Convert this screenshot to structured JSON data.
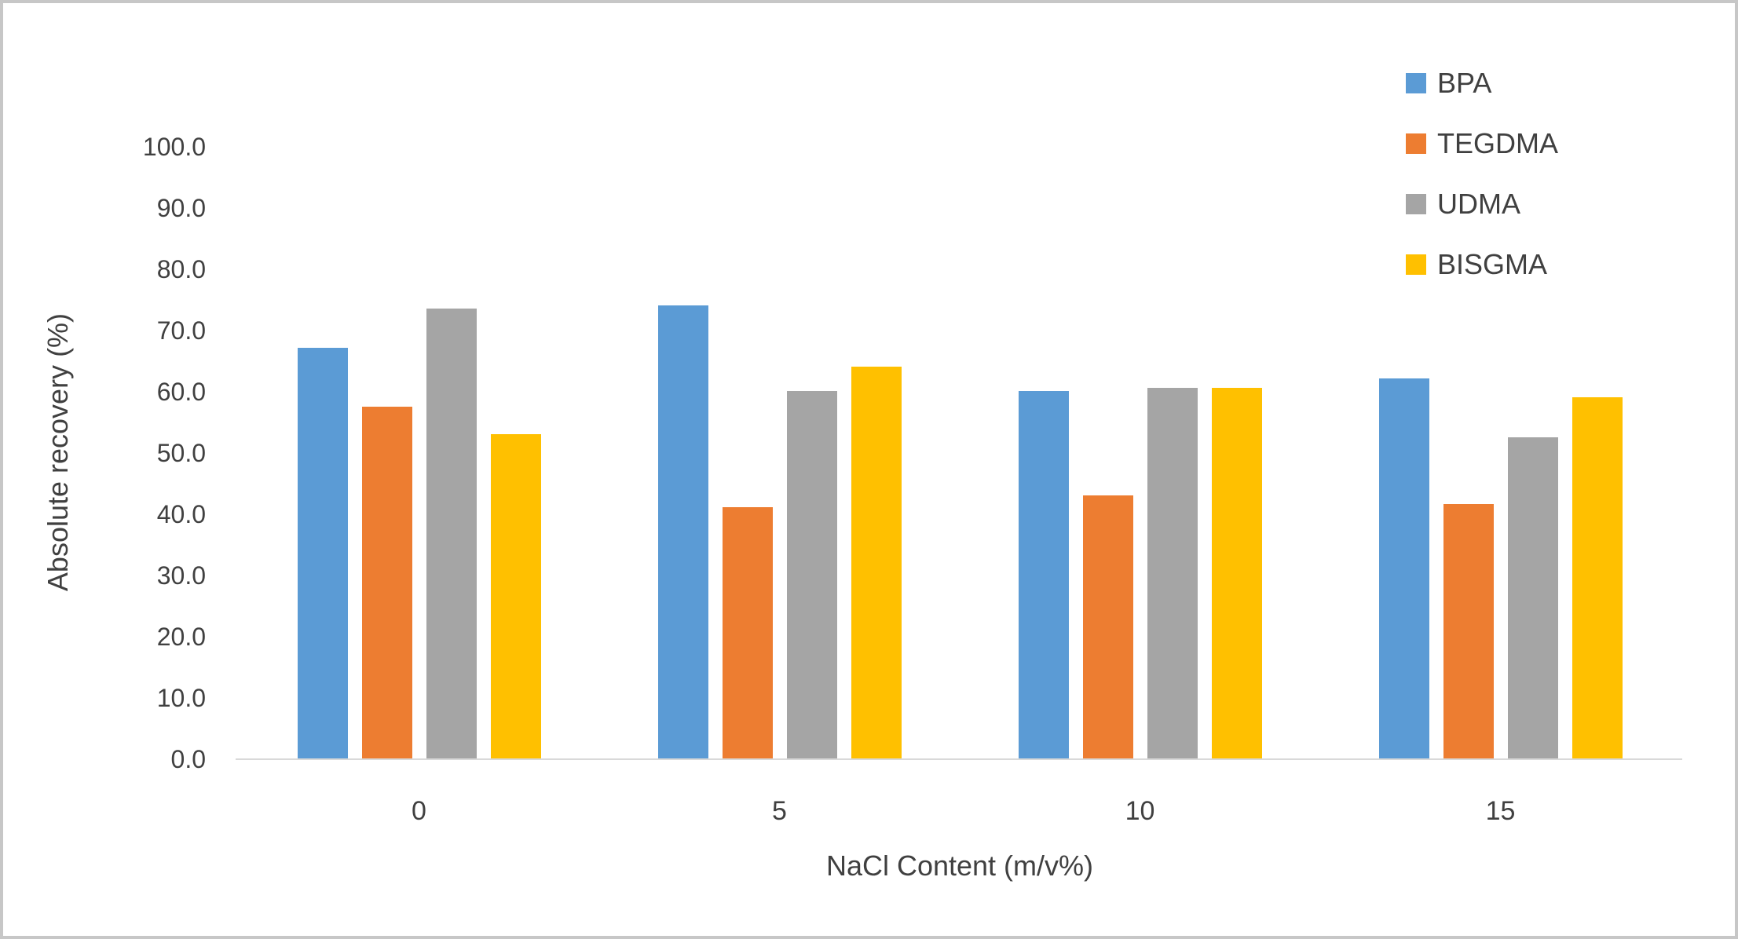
{
  "chart_data": {
    "type": "bar",
    "title": "",
    "xlabel": "NaCl Content (m/v%)",
    "ylabel": "Absolute recovery (%)",
    "categories": [
      "0",
      "5",
      "10",
      "15"
    ],
    "series": [
      {
        "name": "BPA",
        "color": "#5B9BD5",
        "values": [
          67.0,
          74.0,
          60.0,
          62.0
        ]
      },
      {
        "name": "TEGDMA",
        "color": "#ED7D31",
        "values": [
          57.5,
          41.0,
          43.0,
          41.5
        ]
      },
      {
        "name": "UDMA",
        "color": "#A5A5A5",
        "values": [
          73.5,
          60.0,
          60.5,
          52.5
        ]
      },
      {
        "name": "BISGMA",
        "color": "#FFC000",
        "values": [
          53.0,
          64.0,
          60.5,
          59.0
        ]
      }
    ],
    "ylim": [
      0,
      100
    ],
    "ytick_step": 10,
    "ytick_decimals": 1,
    "grid": false,
    "legend_position": "top-right",
    "axis_line_color": "#D9D9D9",
    "text_color": "#404040",
    "frame_color": "#C7C7C7"
  }
}
